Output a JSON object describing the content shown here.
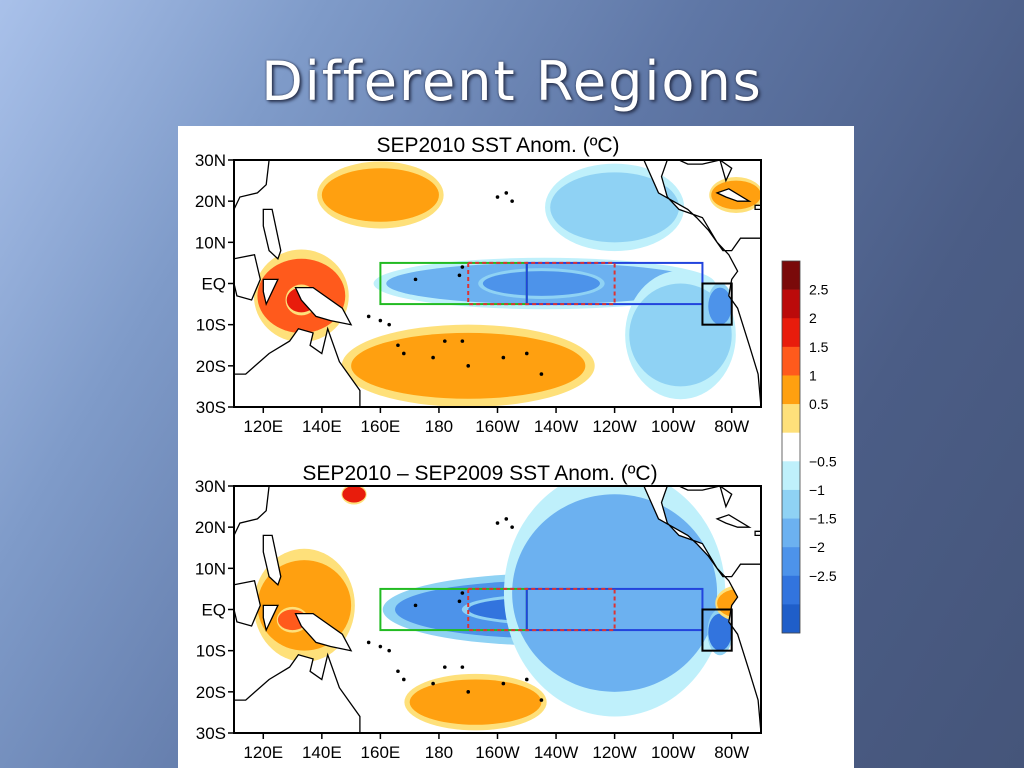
{
  "slide": {
    "title": "Different Regions"
  },
  "chart_data": [
    {
      "type": "heatmap",
      "title": "SEP2010 SST Anom. (ºC)",
      "x_tick_labels": [
        "120E",
        "140E",
        "160E",
        "180",
        "160W",
        "140W",
        "120W",
        "100W",
        "80W"
      ],
      "y_tick_labels": [
        "30N",
        "20N",
        "10N",
        "EQ",
        "10S",
        "20S",
        "30S"
      ],
      "xlim": [
        110,
        290
      ],
      "ylim": [
        -30,
        30
      ],
      "regions": [
        {
          "color": "#22bb22",
          "style": "solid",
          "lon": [
            160,
            210
          ],
          "lat": [
            -5,
            5
          ]
        },
        {
          "color": "#2244dd",
          "style": "solid",
          "lon": [
            210,
            270
          ],
          "lat": [
            -5,
            5
          ]
        },
        {
          "color": "#dd3333",
          "style": "dashed",
          "lon": [
            190,
            240
          ],
          "lat": [
            -5,
            5
          ]
        },
        {
          "color": "#000000",
          "style": "solid",
          "lon": [
            270,
            280
          ],
          "lat": [
            -10,
            0
          ]
        }
      ],
      "features": [
        {
          "sign": "neg",
          "lon": [
            162,
            270
          ],
          "lat": [
            -5,
            5
          ],
          "value": -1.5
        },
        {
          "sign": "neg",
          "lon": [
            195,
            235
          ],
          "lat": [
            -3,
            3
          ],
          "value": -2.0
        },
        {
          "sign": "neg",
          "lon": [
            218,
            262
          ],
          "lat": [
            10,
            27
          ],
          "value": -1.0
        },
        {
          "sign": "neg",
          "lon": [
            245,
            280
          ],
          "lat": [
            -25,
            0
          ],
          "value": -1.0
        },
        {
          "sign": "neg",
          "lon": [
            272,
            280
          ],
          "lat": [
            -10,
            -1
          ],
          "value": -2.0
        },
        {
          "sign": "pos",
          "lon": [
            118,
            148
          ],
          "lat": [
            -12,
            6
          ],
          "value": 1.5
        },
        {
          "sign": "pos",
          "lon": [
            128,
            138
          ],
          "lat": [
            -7,
            -1
          ],
          "value": 2.0
        },
        {
          "sign": "pos",
          "lon": [
            150,
            230
          ],
          "lat": [
            -28,
            -12
          ],
          "value": 1.0
        },
        {
          "sign": "pos",
          "lon": [
            140,
            180
          ],
          "lat": [
            15,
            28
          ],
          "value": 1.0
        },
        {
          "sign": "pos",
          "lon": [
            273,
            290
          ],
          "lat": [
            18,
            25
          ],
          "value": 1.0
        }
      ]
    },
    {
      "type": "heatmap",
      "title": "SEP2010 – SEP2009 SST Anom. (ºC)",
      "x_tick_labels": [
        "120E",
        "140E",
        "160E",
        "180",
        "160W",
        "140W",
        "120W",
        "100W",
        "80W"
      ],
      "y_tick_labels": [
        "30N",
        "20N",
        "10N",
        "EQ",
        "10S",
        "20S",
        "30S"
      ],
      "xlim": [
        110,
        290
      ],
      "ylim": [
        -30,
        30
      ],
      "regions": [
        {
          "color": "#22bb22",
          "style": "solid",
          "lon": [
            160,
            210
          ],
          "lat": [
            -5,
            5
          ]
        },
        {
          "color": "#2244dd",
          "style": "solid",
          "lon": [
            210,
            270
          ],
          "lat": [
            -5,
            5
          ]
        },
        {
          "color": "#dd3333",
          "style": "dashed",
          "lon": [
            190,
            240
          ],
          "lat": [
            -5,
            5
          ]
        },
        {
          "color": "#000000",
          "style": "solid",
          "lon": [
            270,
            280
          ],
          "lat": [
            -10,
            0
          ]
        }
      ],
      "features": [
        {
          "sign": "neg",
          "lon": [
            165,
            270
          ],
          "lat": [
            -7,
            7
          ],
          "value": -2.0
        },
        {
          "sign": "neg",
          "lon": [
            190,
            245
          ],
          "lat": [
            -3,
            3
          ],
          "value": -2.5
        },
        {
          "sign": "neg",
          "lon": [
            205,
            275
          ],
          "lat": [
            -20,
            28
          ],
          "value": -1.5
        },
        {
          "sign": "neg",
          "lon": [
            272,
            280
          ],
          "lat": [
            -10,
            -1
          ],
          "value": -2.5
        },
        {
          "sign": "pos",
          "lon": [
            118,
            150
          ],
          "lat": [
            -10,
            12
          ],
          "value": 1.0
        },
        {
          "sign": "pos",
          "lon": [
            125,
            135
          ],
          "lat": [
            -5,
            0
          ],
          "value": 1.5
        },
        {
          "sign": "pos",
          "lon": [
            170,
            215
          ],
          "lat": [
            -28,
            -17
          ],
          "value": 1.0
        },
        {
          "sign": "pos",
          "lon": [
            147,
            155
          ],
          "lat": [
            26,
            30
          ],
          "value": 2.0
        },
        {
          "sign": "pos",
          "lon": [
            275,
            290
          ],
          "lat": [
            -2,
            5
          ],
          "value": 1.0
        }
      ]
    }
  ],
  "colorbar": {
    "labels": [
      "2.5",
      "2",
      "1.5",
      "1",
      "0.5",
      "−0.5",
      "−1",
      "−1.5",
      "−2",
      "−2.5"
    ],
    "colors": [
      "#7a0a0a",
      "#bb0a0a",
      "#e81c0c",
      "#ff5a1c",
      "#ffa010",
      "#fee07a",
      "#ffffff",
      "#bff0fb",
      "#8fd2f4",
      "#6cb1f0",
      "#4d93ea",
      "#3274de",
      "#1f5ec9"
    ]
  }
}
